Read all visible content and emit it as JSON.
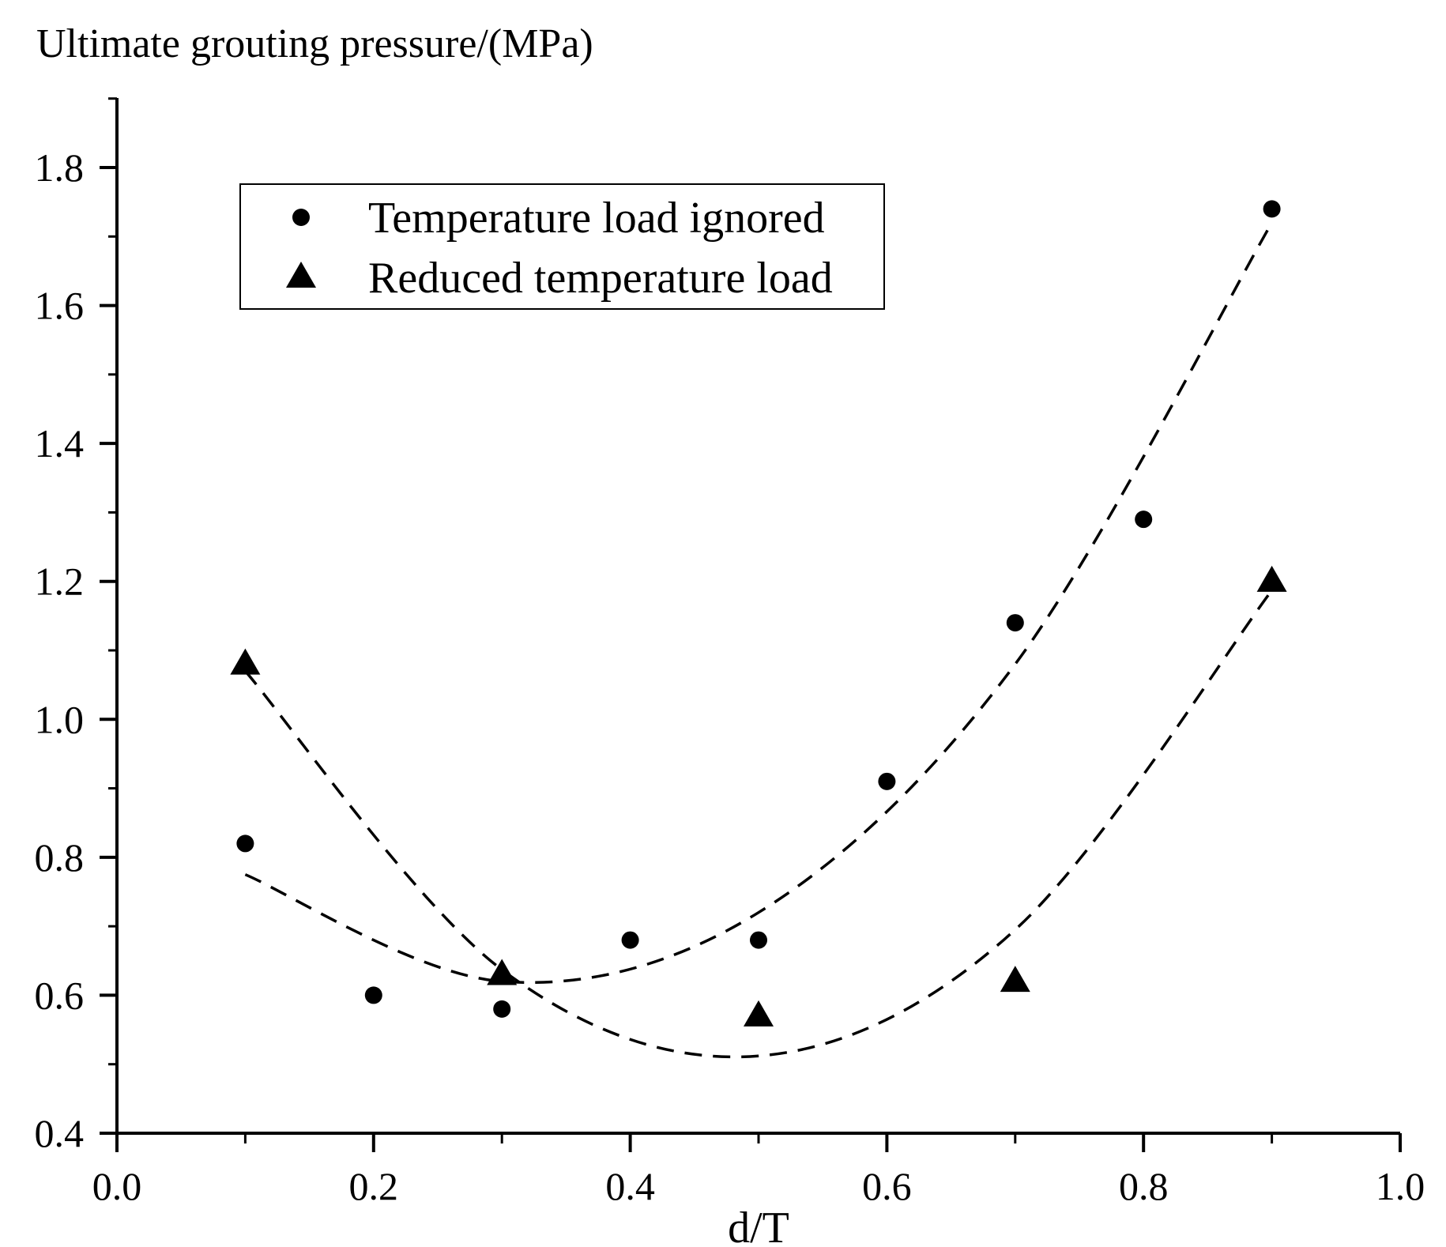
{
  "chart_data": {
    "type": "scatter",
    "ylabel": "Ultimate grouting pressure/(MPa)",
    "xlabel": "d/T",
    "xlim": [
      0.0,
      1.0
    ],
    "ylim": [
      0.4,
      1.9
    ],
    "x_ticks": [
      "0.0",
      "0.2",
      "0.4",
      "0.6",
      "0.8",
      "1.0"
    ],
    "y_ticks": [
      "0.4",
      "0.6",
      "0.8",
      "1.0",
      "1.2",
      "1.4",
      "1.6",
      "1.8"
    ],
    "grid": false,
    "legend_position": "top-left",
    "series": [
      {
        "name": "Temperature load ignored",
        "marker": "circle",
        "color": "#000000",
        "x": [
          0.1,
          0.2,
          0.3,
          0.4,
          0.5,
          0.6,
          0.7,
          0.8,
          0.9
        ],
        "y": [
          0.82,
          0.6,
          0.58,
          0.68,
          0.68,
          0.91,
          1.14,
          1.29,
          1.74
        ],
        "fit": {
          "style": "dashed",
          "x_range": [
            0.1,
            0.9
          ],
          "points": [
            [
              0.1,
              0.775
            ],
            [
              0.3,
              0.62
            ],
            [
              0.5,
              0.72
            ],
            [
              0.7,
              1.08
            ],
            [
              0.9,
              1.72
            ]
          ]
        }
      },
      {
        "name": "Reduced temperature load",
        "marker": "triangle",
        "color": "#000000",
        "x": [
          0.1,
          0.3,
          0.5,
          0.7,
          0.9
        ],
        "y": [
          1.08,
          0.63,
          0.57,
          0.62,
          1.2
        ],
        "fit": {
          "style": "dashed",
          "x_range": [
            0.1,
            0.9
          ],
          "points": [
            [
              0.1,
              1.07
            ],
            [
              0.3,
              0.637
            ],
            [
              0.5,
              0.512
            ],
            [
              0.7,
              0.695
            ],
            [
              0.9,
              1.187
            ]
          ]
        }
      }
    ]
  }
}
